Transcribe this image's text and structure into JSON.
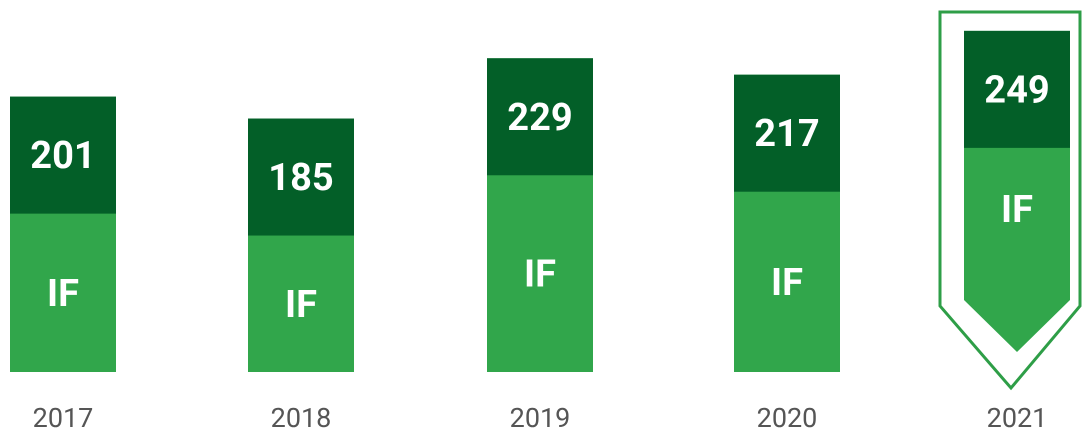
{
  "chart_data": {
    "type": "bar",
    "categories": [
      "2017",
      "2018",
      "2019",
      "2020",
      "2021"
    ],
    "values": [
      201,
      185,
      229,
      217,
      249
    ],
    "segment_label": "IF",
    "color": "#31a64b",
    "top_color": "#035f28",
    "highlight_color": "#2e9e47"
  }
}
